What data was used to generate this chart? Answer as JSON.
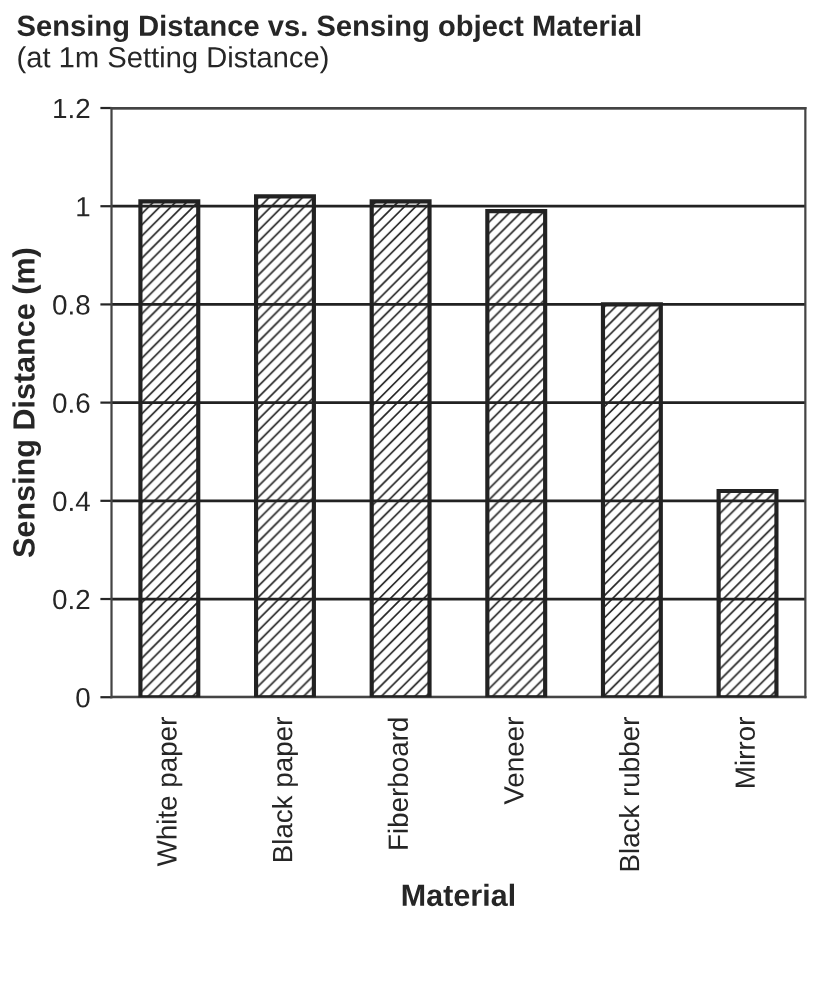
{
  "chart_data": {
    "type": "bar",
    "title": "Sensing Distance vs. Sensing object Material",
    "subtitle": "(at 1m Setting Distance)",
    "xlabel": "Material",
    "ylabel": "Sensing Distance (m)",
    "categories": [
      "White paper",
      "Black paper",
      "Fiberboard",
      "Veneer",
      "Black rubber",
      "Mirror"
    ],
    "values": [
      1.01,
      1.02,
      1.01,
      0.99,
      0.8,
      0.42
    ],
    "color": "#222222",
    "ylim": [
      0,
      1.2
    ],
    "yticks": [
      0,
      0.2,
      0.4,
      0.6,
      0.8,
      1,
      1.2
    ],
    "grid": "y"
  }
}
